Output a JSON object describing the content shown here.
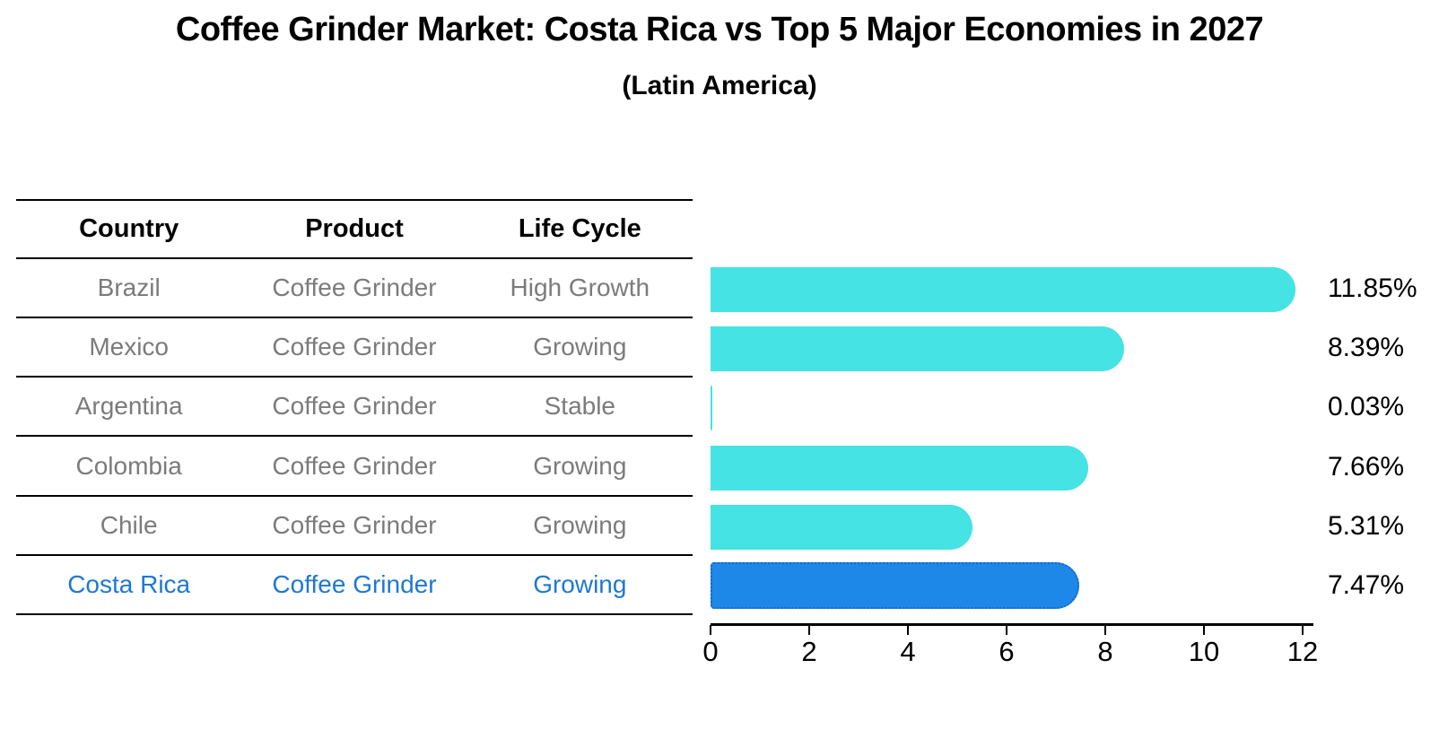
{
  "figure": {
    "title": "Coffee Grinder Market: Costa Rica vs Top 5 Major Economies in 2027",
    "subtitle": "(Latin America)"
  },
  "table": {
    "columns": [
      "Country",
      "Product",
      "Life Cycle"
    ],
    "rows": [
      {
        "country": "Brazil",
        "product": "Coffee Grinder",
        "life_cycle": "High Growth",
        "highlighted": false
      },
      {
        "country": "Mexico",
        "product": "Coffee Grinder",
        "life_cycle": "Growing",
        "highlighted": false
      },
      {
        "country": "Argentina",
        "product": "Coffee Grinder",
        "life_cycle": "Stable",
        "highlighted": false
      },
      {
        "country": "Colombia",
        "product": "Coffee Grinder",
        "life_cycle": "Growing",
        "highlighted": false
      },
      {
        "country": "Chile",
        "product": "Coffee Grinder",
        "life_cycle": "Growing",
        "highlighted": false
      },
      {
        "country": "Costa Rica",
        "product": "Coffee Grinder",
        "life_cycle": "Growing",
        "highlighted": true
      }
    ]
  },
  "chart_data": {
    "type": "bar",
    "orientation": "horizontal",
    "title": "Coffee Grinder Market: Costa Rica vs Top 5 Major Economies in 2027",
    "subtitle": "(Latin America)",
    "categories": [
      "Brazil",
      "Mexico",
      "Argentina",
      "Colombia",
      "Chile",
      "Costa Rica"
    ],
    "values": [
      11.85,
      8.39,
      0.03,
      7.66,
      5.31,
      7.47
    ],
    "value_labels": [
      "11.85%",
      "8.39%",
      "0.03%",
      "7.66%",
      "5.31%",
      "7.47%"
    ],
    "xlabel": "",
    "ylabel": "",
    "xlim": [
      0,
      12
    ],
    "xticks": [
      0,
      2,
      4,
      6,
      8,
      10,
      12
    ],
    "grid": false,
    "legend": false,
    "bar_color": "#45E3E3",
    "highlight": {
      "index": 5,
      "category": "Costa Rica",
      "bar_color": "#1E88E8",
      "border_color": "#1468C8",
      "text_color": "#1E78D2"
    }
  }
}
